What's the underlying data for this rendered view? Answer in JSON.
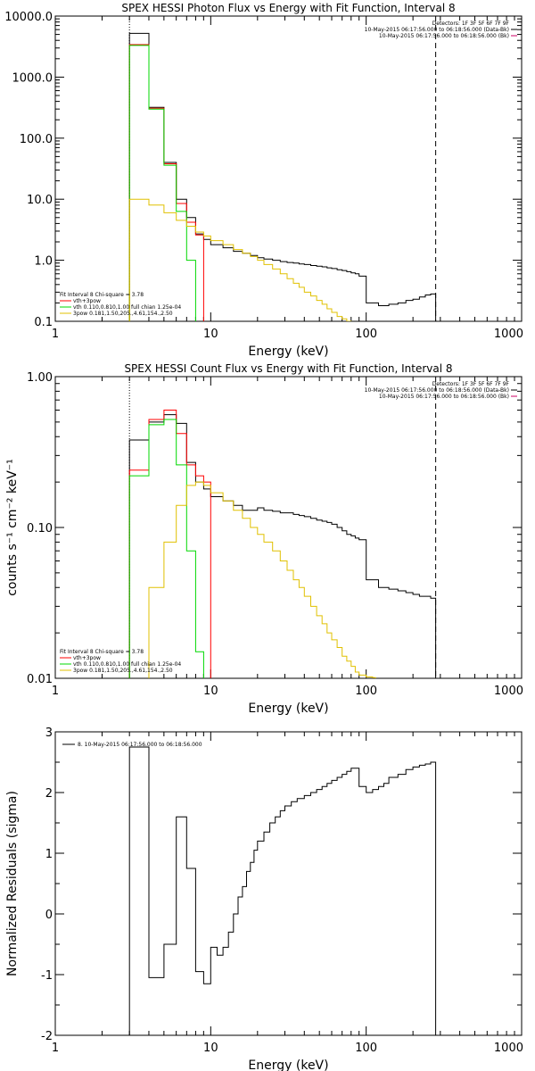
{
  "chart_data": [
    {
      "type": "line",
      "title": "SPEX HESSI Photon Flux vs Energy with Fit Function, Interval 8",
      "xlabel": "Energy (keV)",
      "ylabel": "",
      "xscale": "log",
      "yscale": "log",
      "xlim": [
        1,
        1000
      ],
      "ylim": [
        0.1,
        10000
      ],
      "x_ticks": [
        "1",
        "10",
        "100",
        "1000"
      ],
      "y_ticks": [
        "0.1",
        "1.0",
        "10.0",
        "100.0",
        "1000.0",
        "10000.0"
      ],
      "header": [
        "Detectors: 1F 3F 5F 6F 7F 9F",
        "10-May-2015 06:17:56.000 to 06:18:56.000 (Data-Bk)",
        "10-May-2015 06:17:56.000 to 06:18:56.000 (Bk)"
      ],
      "legend": [
        "Fit Interval 8    Chi-square = 3.78",
        "vth+3pow",
        "vth 0.110,0.810,1.00  full chian 1.25e-04",
        "3pow 0.181,1.50,205.,4.61,154.,2.50"
      ],
      "vlines": [
        3,
        280
      ],
      "series": [
        {
          "name": "Data-Bk",
          "color": "#000000",
          "edges": [
            3,
            4,
            5,
            6,
            7,
            8,
            9,
            10,
            12,
            14,
            16,
            18,
            20,
            22,
            25,
            28,
            31,
            34,
            37,
            40,
            44,
            48,
            52,
            56,
            60,
            65,
            70,
            75,
            80,
            85,
            90,
            100,
            120,
            140,
            160,
            180,
            200,
            220,
            240,
            260,
            280
          ],
          "values": [
            5200,
            320,
            40,
            10,
            5,
            2.7,
            2.2,
            1.8,
            1.6,
            1.4,
            1.3,
            1.2,
            1.1,
            1.05,
            1.0,
            0.95,
            0.92,
            0.9,
            0.87,
            0.85,
            0.82,
            0.8,
            0.78,
            0.75,
            0.73,
            0.7,
            0.68,
            0.65,
            0.62,
            0.6,
            0.55,
            0.2,
            0.18,
            0.19,
            0.2,
            0.22,
            0.23,
            0.25,
            0.27,
            0.28
          ]
        },
        {
          "name": "vth+3pow",
          "color": "#ff0000",
          "edges": [
            3,
            4,
            5,
            6,
            7,
            8,
            9
          ],
          "values": [
            3400,
            310,
            38,
            8.5,
            4.2,
            2.6
          ]
        },
        {
          "name": "vth",
          "color": "#00d800",
          "edges": [
            3,
            4,
            5,
            6,
            7,
            8
          ],
          "values": [
            3300,
            300,
            36,
            6.3,
            1.0
          ]
        },
        {
          "name": "3pow",
          "color": "#e0c000",
          "edges": [
            3,
            4,
            5,
            6,
            7,
            8,
            9,
            10,
            12,
            14,
            16,
            18,
            20,
            22,
            25,
            28,
            31,
            34,
            37,
            40,
            44,
            48,
            52,
            56,
            60,
            65,
            70,
            75,
            80
          ],
          "values": [
            10,
            8,
            6,
            4.5,
            3.6,
            2.9,
            2.5,
            2.1,
            1.8,
            1.5,
            1.3,
            1.15,
            1.0,
            0.85,
            0.72,
            0.6,
            0.5,
            0.42,
            0.36,
            0.3,
            0.26,
            0.22,
            0.19,
            0.16,
            0.14,
            0.12,
            0.11,
            0.1
          ]
        }
      ]
    },
    {
      "type": "line",
      "title": "SPEX HESSI Count Flux vs Energy with Fit Function, Interval 8",
      "xlabel": "Energy (keV)",
      "ylabel": "counts s⁻¹ cm⁻² keV⁻¹",
      "xscale": "log",
      "yscale": "log",
      "xlim": [
        1,
        1000
      ],
      "ylim": [
        0.01,
        1.0
      ],
      "x_ticks": [
        "1",
        "10",
        "100",
        "1000"
      ],
      "y_ticks": [
        "0.01",
        "0.10",
        "1.00"
      ],
      "header": [
        "Detectors: 1F 3F 5F 6F 7F 9F",
        "10-May-2015 06:17:56.000 to 06:18:56.000 (Data-Bk)",
        "10-May-2015 06:17:56.000 to 06:18:56.000 (Bk)"
      ],
      "legend": [
        "Fit Interval 8    Chi-square = 3.78",
        "vth+3pow",
        "vth 0.110,0.810,1.00  full chian 1.25e-04",
        "3pow 0.181,1.50,205.,4.61,154.,2.50"
      ],
      "vlines": [
        3,
        280
      ],
      "series": [
        {
          "name": "Data-Bk",
          "color": "#000000",
          "edges": [
            3,
            4,
            5,
            6,
            7,
            8,
            9,
            10,
            12,
            14,
            16,
            18,
            20,
            22,
            25,
            28,
            31,
            34,
            37,
            40,
            44,
            48,
            52,
            56,
            60,
            65,
            70,
            75,
            80,
            85,
            90,
            100,
            120,
            140,
            160,
            180,
            200,
            220,
            240,
            260,
            280
          ],
          "values": [
            0.38,
            0.5,
            0.56,
            0.49,
            0.27,
            0.2,
            0.18,
            0.16,
            0.15,
            0.14,
            0.13,
            0.13,
            0.135,
            0.13,
            0.128,
            0.125,
            0.125,
            0.122,
            0.12,
            0.118,
            0.115,
            0.112,
            0.11,
            0.108,
            0.105,
            0.1,
            0.095,
            0.09,
            0.088,
            0.085,
            0.083,
            0.045,
            0.04,
            0.039,
            0.038,
            0.037,
            0.036,
            0.035,
            0.035,
            0.034
          ]
        },
        {
          "name": "vth+3pow",
          "color": "#ff0000",
          "edges": [
            3,
            4,
            5,
            6,
            7,
            8,
            9,
            10
          ],
          "values": [
            0.24,
            0.52,
            0.6,
            0.42,
            0.26,
            0.22,
            0.2
          ]
        },
        {
          "name": "vth",
          "color": "#00d800",
          "edges": [
            3,
            4,
            5,
            6,
            7,
            8,
            9
          ],
          "values": [
            0.22,
            0.48,
            0.52,
            0.26,
            0.07,
            0.015
          ]
        },
        {
          "name": "3pow",
          "color": "#e0c000",
          "edges": [
            4,
            5,
            6,
            7,
            8,
            9,
            10,
            12,
            14,
            16,
            18,
            20,
            22,
            25,
            28,
            31,
            34,
            37,
            40,
            44,
            48,
            52,
            56,
            60,
            65,
            70,
            75,
            80,
            85,
            90,
            100,
            110,
            115
          ],
          "values": [
            0.04,
            0.08,
            0.14,
            0.19,
            0.2,
            0.19,
            0.17,
            0.15,
            0.13,
            0.115,
            0.1,
            0.09,
            0.08,
            0.07,
            0.06,
            0.052,
            0.045,
            0.04,
            0.035,
            0.03,
            0.026,
            0.023,
            0.02,
            0.018,
            0.016,
            0.014,
            0.013,
            0.012,
            0.011,
            0.0105,
            0.0102,
            0.0101
          ]
        }
      ]
    },
    {
      "type": "line",
      "title": "",
      "xlabel": "Energy (keV)",
      "ylabel": "Normalized Residuals (sigma)",
      "xscale": "log",
      "yscale": "linear",
      "xlim": [
        1,
        1000
      ],
      "ylim": [
        -2,
        3
      ],
      "x_ticks": [
        "1",
        "10",
        "100",
        "1000"
      ],
      "y_ticks": [
        "-2",
        "-1",
        "0",
        "1",
        "2",
        "3"
      ],
      "legend": [
        "8. 10-May-2015 06:17:56.000 to 06:18:56.000"
      ],
      "series": [
        {
          "name": "8. 10-May-2015 06:17:56.000 to 06:18:56.000",
          "color": "#000000",
          "edges": [
            3,
            4,
            5,
            6,
            7,
            8,
            9,
            10,
            11,
            12,
            13,
            14,
            15,
            16,
            17,
            18,
            19,
            20,
            22,
            24,
            26,
            28,
            30,
            33,
            36,
            40,
            44,
            48,
            52,
            56,
            60,
            65,
            70,
            75,
            80,
            90,
            100,
            110,
            120,
            130,
            140,
            160,
            180,
            200,
            220,
            240,
            260,
            280
          ],
          "values": [
            2.75,
            -1.05,
            -0.5,
            1.6,
            0.75,
            -0.95,
            -1.15,
            -0.55,
            -0.68,
            -0.55,
            -0.3,
            0.0,
            0.28,
            0.45,
            0.7,
            0.85,
            1.05,
            1.2,
            1.35,
            1.5,
            1.6,
            1.7,
            1.78,
            1.85,
            1.9,
            1.95,
            2.0,
            2.05,
            2.1,
            2.15,
            2.2,
            2.25,
            2.3,
            2.35,
            2.4,
            2.1,
            2.0,
            2.05,
            2.1,
            2.15,
            2.25,
            2.3,
            2.38,
            2.42,
            2.45,
            2.47,
            2.5
          ]
        }
      ]
    }
  ]
}
